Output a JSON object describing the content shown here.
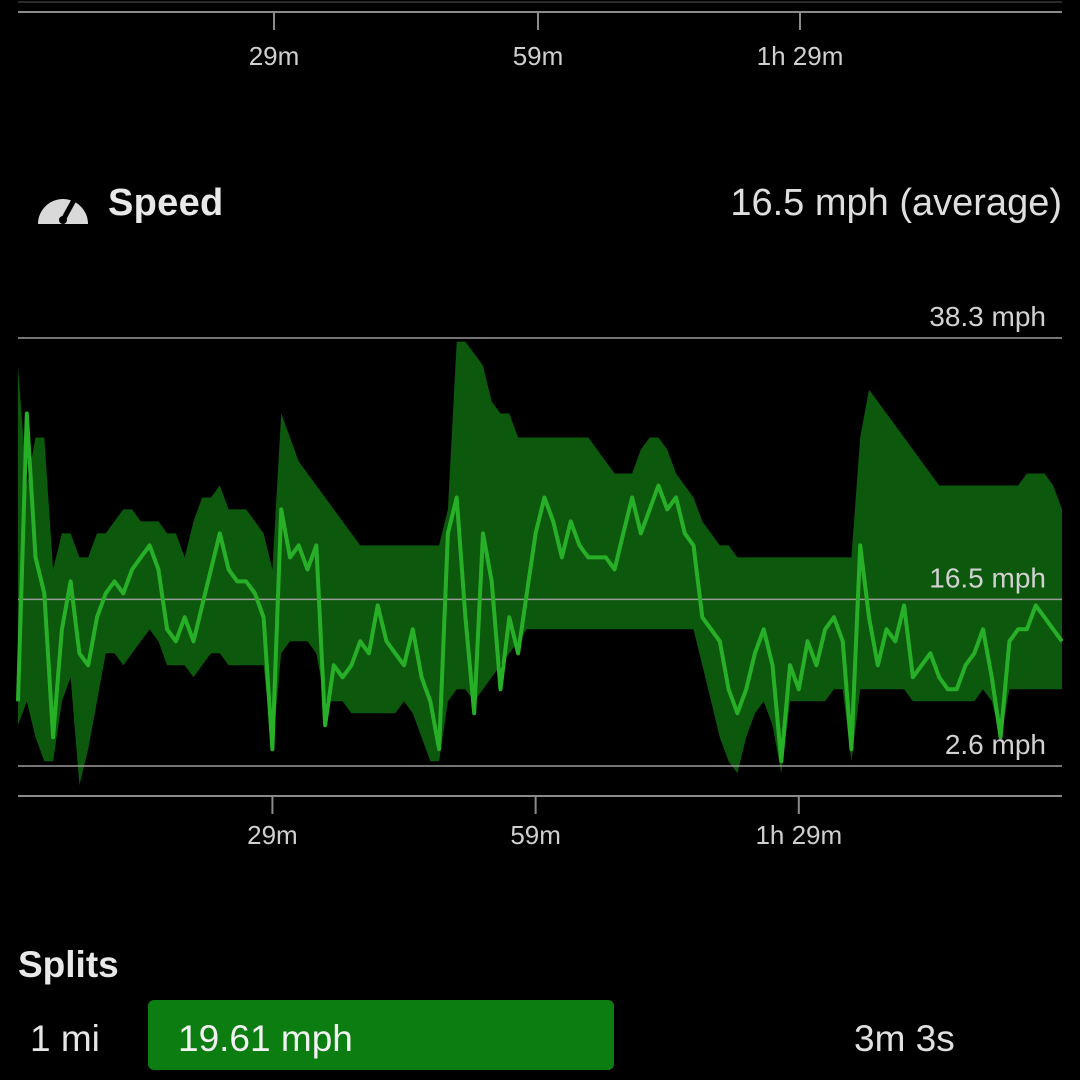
{
  "top_chart": {
    "x_ticks": [
      "29m",
      "59m",
      "1h 29m"
    ]
  },
  "speed": {
    "icon": "speedometer-icon",
    "title": "Speed",
    "average_text": "16.5 mph (average)"
  },
  "chart_data": {
    "type": "line",
    "xlabel": "",
    "ylabel": "",
    "x_ticks": [
      "29m",
      "59m",
      "1h 29m"
    ],
    "x_tick_minutes": [
      29,
      59,
      89
    ],
    "x_range_minutes": [
      0,
      119
    ],
    "y_range": [
      2.6,
      38.3
    ],
    "ref_lines": [
      {
        "label": "38.3 mph",
        "value": 38.3
      },
      {
        "label": "16.5 mph",
        "value": 16.5
      },
      {
        "label": "2.6 mph",
        "value": 2.6
      }
    ],
    "line_color": "#27b027",
    "band_color": "#0d5d0d",
    "series": [
      {
        "x": [
          0,
          1,
          2,
          3,
          4,
          5,
          6,
          7,
          8,
          9,
          10,
          11,
          12,
          13,
          14,
          15,
          16,
          17,
          18,
          19,
          20,
          21,
          22,
          23,
          24,
          25,
          26,
          27,
          28,
          29,
          30,
          31,
          32,
          33,
          34,
          35,
          36,
          37,
          38,
          39,
          40,
          41,
          42,
          43,
          44,
          45,
          46,
          47,
          48,
          49,
          50,
          51,
          52,
          53,
          54,
          55,
          56,
          57,
          58,
          59,
          60,
          61,
          62,
          63,
          64,
          65,
          66,
          67,
          68,
          69,
          70,
          71,
          72,
          73,
          74,
          75,
          76,
          77,
          78,
          79,
          80,
          81,
          82,
          83,
          84,
          85,
          86,
          87,
          88,
          89,
          90,
          91,
          92,
          93,
          94,
          95,
          96,
          97,
          98,
          99,
          100,
          101,
          102,
          103,
          104,
          105,
          106,
          107,
          108,
          109,
          110,
          111,
          112,
          113,
          114,
          115,
          116,
          117,
          118,
          119
        ],
        "y": [
          8,
          32,
          20,
          17,
          5,
          14,
          18,
          12,
          11,
          15,
          17,
          18,
          17,
          19,
          20,
          21,
          19,
          14,
          13,
          15,
          13,
          16,
          19,
          22,
          19,
          18,
          18,
          17,
          15,
          4,
          24,
          20,
          21,
          19,
          21,
          6,
          11,
          10,
          11,
          13,
          12,
          16,
          13,
          12,
          11,
          14,
          10,
          8,
          4,
          22,
          25,
          15,
          7,
          22,
          18,
          9,
          15,
          12,
          17,
          22,
          25,
          23,
          20,
          23,
          21,
          20,
          20,
          20,
          19,
          22,
          25,
          22,
          24,
          26,
          24,
          25,
          22,
          21,
          15,
          14,
          13,
          9,
          7,
          9,
          12,
          14,
          11,
          3,
          11,
          9,
          13,
          11,
          14,
          15,
          13,
          4,
          21,
          15,
          11,
          14,
          13,
          16,
          10,
          11,
          12,
          10,
          9,
          9,
          11,
          12,
          14,
          10,
          5,
          13,
          14,
          14,
          16,
          15,
          14,
          13
        ]
      }
    ],
    "band_upper": [
      36,
      26,
      30,
      30,
      19,
      22,
      22,
      20,
      20,
      22,
      22,
      23,
      24,
      24,
      23,
      23,
      23,
      22,
      22,
      20,
      23,
      25,
      25,
      26,
      24,
      24,
      24,
      23,
      22,
      19,
      32,
      30,
      28,
      27,
      26,
      25,
      24,
      23,
      22,
      21,
      21,
      21,
      21,
      21,
      21,
      21,
      21,
      21,
      21,
      24,
      38,
      38,
      37,
      36,
      33,
      32,
      32,
      30,
      30,
      30,
      30,
      30,
      30,
      30,
      30,
      30,
      29,
      28,
      27,
      27,
      27,
      29,
      30,
      30,
      29,
      27,
      26,
      25,
      23,
      22,
      21,
      21,
      20,
      20,
      20,
      20,
      20,
      20,
      20,
      20,
      20,
      20,
      20,
      20,
      20,
      20,
      30,
      34,
      33,
      32,
      31,
      30,
      29,
      28,
      27,
      26,
      26,
      26,
      26,
      26,
      26,
      26,
      26,
      26,
      26,
      27,
      27,
      27,
      26,
      24
    ],
    "band_lower": [
      6,
      8,
      5,
      3,
      3,
      8,
      10,
      1,
      4,
      8,
      12,
      12,
      11,
      12,
      13,
      14,
      13,
      11,
      11,
      11,
      10,
      11,
      12,
      12,
      11,
      11,
      11,
      11,
      11,
      4,
      12,
      13,
      13,
      13,
      12,
      8,
      8,
      8,
      7,
      7,
      7,
      7,
      7,
      7,
      8,
      7,
      5,
      3,
      3,
      8,
      9,
      9,
      8,
      9,
      10,
      11,
      12,
      13,
      14,
      14,
      14,
      14,
      14,
      14,
      14,
      14,
      14,
      14,
      14,
      14,
      14,
      14,
      14,
      14,
      14,
      14,
      14,
      14,
      11,
      8,
      5,
      3,
      2,
      5,
      7,
      8,
      6,
      2,
      8,
      8,
      8,
      8,
      8,
      9,
      9,
      3,
      9,
      9,
      9,
      9,
      9,
      9,
      8,
      8,
      8,
      8,
      8,
      8,
      8,
      8,
      9,
      8,
      5,
      9,
      9,
      9,
      9,
      9,
      9,
      9
    ]
  },
  "splits": {
    "title": "Splits",
    "rows": [
      {
        "distance": "1 mi",
        "speed": "19.61 mph",
        "speed_fraction": 0.53,
        "time": "3m 3s"
      }
    ]
  }
}
